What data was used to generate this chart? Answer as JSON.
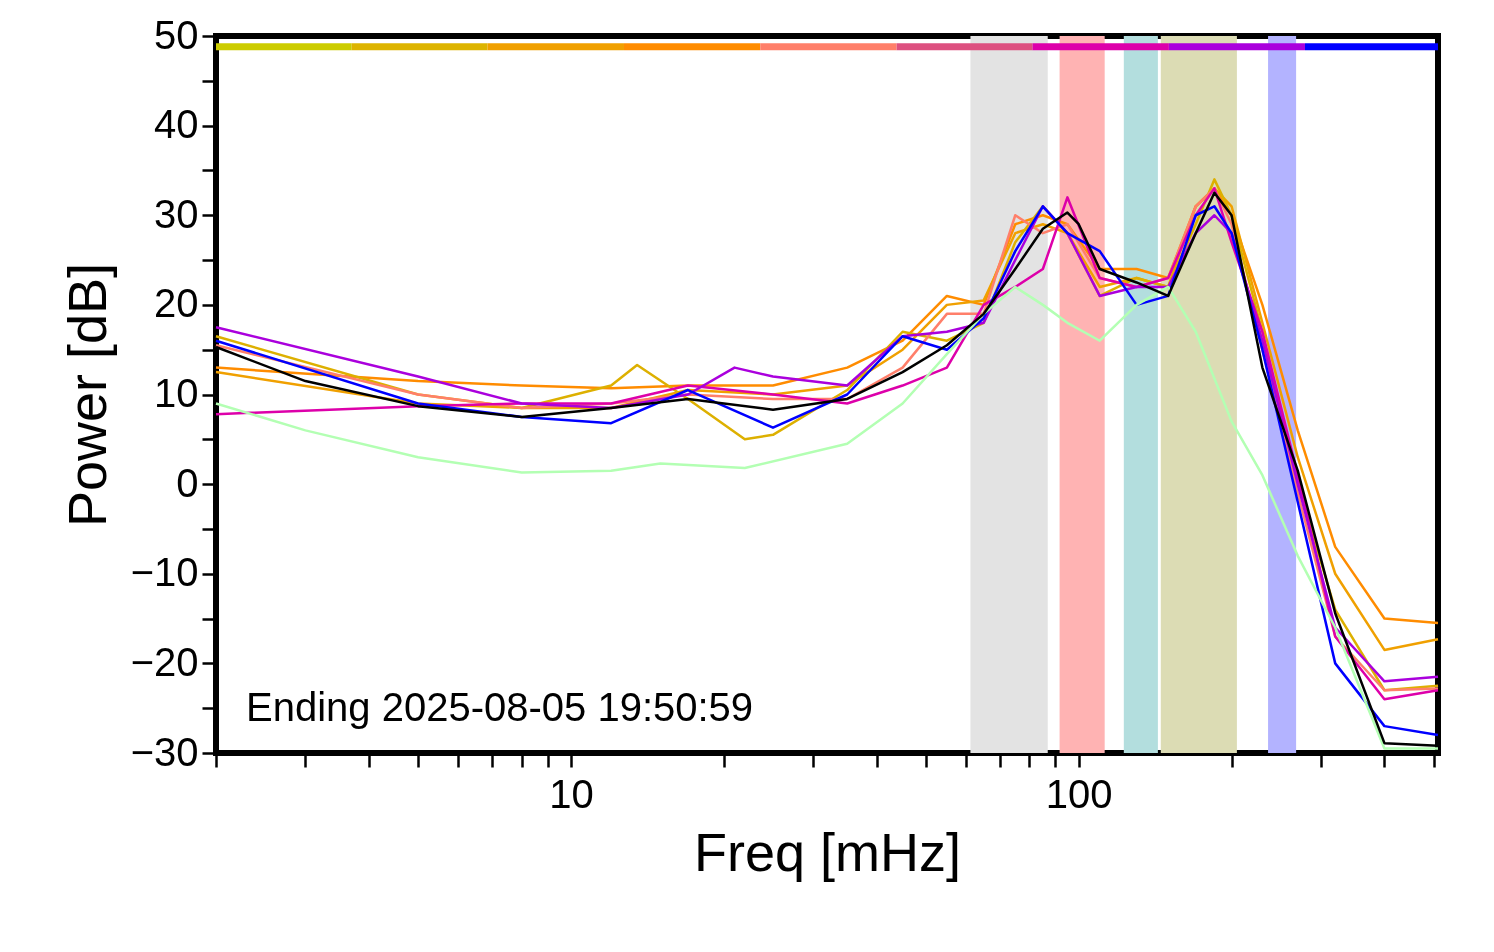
{
  "chart_data": {
    "type": "line",
    "xlabel": "Freq [mHz]",
    "ylabel": "Power [dB]",
    "log": "x",
    "xlim": [
      2,
      510
    ],
    "ylim": [
      -30,
      50
    ],
    "xticks": [
      {
        "value": 2,
        "label": null
      },
      {
        "value": 3,
        "label": null
      },
      {
        "value": 4,
        "label": null
      },
      {
        "value": 5,
        "label": null
      },
      {
        "value": 6,
        "label": null
      },
      {
        "value": 7,
        "label": null
      },
      {
        "value": 8,
        "label": null
      },
      {
        "value": 9,
        "label": null
      },
      10,
      {
        "value": 20,
        "label": null
      },
      {
        "value": 30,
        "label": null
      },
      {
        "value": 40,
        "label": null
      },
      {
        "value": 50,
        "label": null
      },
      {
        "value": 60,
        "label": null
      },
      {
        "value": 70,
        "label": null
      },
      {
        "value": 80,
        "label": null
      },
      {
        "value": 90,
        "label": null
      },
      100,
      {
        "value": 200,
        "label": null
      },
      {
        "value": 300,
        "label": null
      },
      {
        "value": 400,
        "label": null
      },
      {
        "value": 500,
        "label": null
      }
    ],
    "yticks": [
      -30,
      {
        "value": -25,
        "label": null
      },
      -20,
      {
        "value": -15,
        "label": null
      },
      -10,
      {
        "value": -5,
        "label": null
      },
      0,
      {
        "value": 5,
        "label": null
      },
      10,
      {
        "value": 15,
        "label": null
      },
      20,
      {
        "value": 25,
        "label": null
      },
      30,
      {
        "value": 35,
        "label": null
      },
      40,
      {
        "value": 45,
        "label": null
      },
      50
    ],
    "grid": false,
    "marker": "none",
    "line_style": "solid",
    "bands": [
      {
        "axis": "x",
        "from": 61.2,
        "to": 86.9,
        "color": "#e3e3e3"
      },
      {
        "axis": "x",
        "from": 91.7,
        "to": 112.5,
        "color": "#ffb3b3"
      },
      {
        "axis": "x",
        "from": 122.7,
        "to": 143.2,
        "color": "#b3dede"
      },
      {
        "axis": "x",
        "from": 145.1,
        "to": 204.9,
        "color": "#dcdcb4"
      },
      {
        "axis": "x",
        "from": 236,
        "to": 268,
        "color": "#b3b3ff"
      }
    ],
    "annotations": [
      "Ending 2025-08-05 19:50:59"
    ],
    "series": [
      {
        "color": "#ff8c00",
        "x": [
          2,
          5,
          8,
          12,
          17,
          25,
          35,
          45,
          55,
          65,
          75,
          85,
          95,
          110,
          130,
          150,
          170,
          185,
          200,
          230,
          270,
          320,
          400,
          510
        ],
        "values": [
          13,
          11.5,
          11,
          10.7,
          11,
          11,
          13,
          16,
          21,
          20,
          29,
          30,
          29,
          24,
          24,
          23,
          31,
          33,
          30,
          20,
          6,
          -7,
          -15,
          -15.5
        ]
      },
      {
        "color": "#f0a000",
        "x": [
          2,
          5,
          8,
          12,
          17,
          25,
          35,
          45,
          55,
          65,
          75,
          85,
          95,
          110,
          130,
          150,
          170,
          185,
          200,
          230,
          270,
          320,
          400,
          510
        ],
        "values": [
          12.5,
          9,
          8.5,
          8.5,
          10.5,
          10,
          11,
          15,
          20,
          20.5,
          28,
          29,
          28,
          22,
          23,
          22,
          31,
          33,
          31,
          18,
          3,
          -10,
          -18.5,
          -17.3
        ]
      },
      {
        "color": "#ddb000",
        "x": [
          2,
          5,
          8,
          12,
          13.5,
          17,
          22,
          25,
          35,
          45,
          55,
          65,
          75,
          85,
          95,
          110,
          130,
          150,
          170,
          185,
          200,
          230,
          270,
          320,
          400,
          510
        ],
        "values": [
          16.5,
          10,
          8.5,
          11,
          13.3,
          9.5,
          5,
          5.5,
          10.5,
          17,
          16,
          18,
          27,
          31,
          28,
          21,
          23,
          22,
          29,
          34,
          30,
          17,
          0,
          -14,
          -23,
          -22.5
        ]
      },
      {
        "color": "#ff7f6a",
        "x": [
          2,
          5,
          8,
          12,
          17,
          25,
          35,
          45,
          55,
          65,
          75,
          85,
          95,
          110,
          130,
          150,
          170,
          185,
          200,
          230,
          270,
          320,
          400,
          510
        ],
        "values": [
          15.5,
          10,
          8.5,
          9,
          10,
          9.5,
          9.5,
          13,
          19,
          19,
          30,
          28,
          29,
          23,
          22,
          23,
          31,
          33,
          29,
          15,
          -1,
          -17,
          -23,
          -22.8
        ]
      },
      {
        "color": "#dd00aa",
        "x": [
          2,
          5,
          8,
          12,
          17,
          25,
          35,
          45,
          55,
          65,
          75,
          85,
          95,
          110,
          130,
          150,
          170,
          185,
          200,
          230,
          270,
          320,
          400,
          510
        ],
        "values": [
          7.8,
          8.7,
          9,
          9,
          11,
          10,
          9,
          11,
          13,
          20,
          22,
          24,
          32,
          23,
          22,
          23,
          30,
          33,
          27,
          17,
          1,
          -17,
          -24,
          -23
        ]
      },
      {
        "color": "#aa00dd",
        "x": [
          2,
          5,
          8,
          12,
          17,
          21,
          25,
          35,
          45,
          55,
          65,
          75,
          85,
          95,
          110,
          130,
          150,
          170,
          185,
          200,
          230,
          270,
          320,
          400,
          510
        ],
        "values": [
          17.5,
          12,
          9,
          8.5,
          10,
          13,
          12,
          11,
          16.5,
          17,
          18,
          25,
          31,
          28,
          21,
          22,
          22,
          28,
          30,
          28,
          16,
          0,
          -16,
          -22,
          -21.5
        ]
      },
      {
        "color": "#0000ff",
        "x": [
          2,
          5,
          8,
          12,
          17,
          25,
          35,
          45,
          55,
          65,
          75,
          85,
          95,
          110,
          130,
          150,
          170,
          185,
          200,
          230,
          270,
          320,
          400,
          510
        ],
        "values": [
          16,
          9,
          7.5,
          6.8,
          10.5,
          6.3,
          10,
          16.5,
          15,
          18.5,
          26,
          31,
          28,
          26,
          20,
          21,
          30,
          31,
          28,
          15,
          -2,
          -20,
          -27,
          -28
        ]
      },
      {
        "color": "#b3ffb3",
        "x": [
          2,
          3,
          5,
          8,
          12,
          15,
          22,
          35,
          45,
          55,
          65,
          75,
          85,
          95,
          110,
          130,
          150,
          170,
          200,
          230,
          270,
          320,
          400,
          510
        ],
        "values": [
          9,
          6,
          3,
          1.3,
          1.5,
          2.3,
          1.8,
          4.5,
          9,
          14.5,
          19,
          22,
          20,
          18,
          16,
          20,
          22,
          17,
          7,
          1,
          -8,
          -16,
          -29.5,
          -29.5
        ]
      },
      {
        "color": "#000000",
        "x": [
          2,
          3,
          5,
          8,
          12,
          17,
          25,
          35,
          45,
          55,
          65,
          75,
          85,
          95,
          100,
          110,
          130,
          150,
          170,
          185,
          200,
          230,
          270,
          320,
          400,
          510
        ],
        "values": [
          15.3,
          11.5,
          8.7,
          7.5,
          8.5,
          9.5,
          8.3,
          9.5,
          12.5,
          15.5,
          19,
          24,
          28.5,
          30.3,
          29,
          24,
          22.5,
          21,
          28,
          32.5,
          30,
          13,
          1.5,
          -14.4,
          -28.9,
          -29.2
        ]
      },
      {
        "color": "#cccc00",
        "x": [
          2,
          3.7
        ],
        "values": [
          48.8,
          48.8
        ]
      },
      {
        "color": "#ddb400",
        "x": [
          3.7,
          6.85
        ],
        "values": [
          48.8,
          48.8
        ]
      },
      {
        "color": "#f0a000",
        "x": [
          6.85,
          12.72
        ],
        "values": [
          48.8,
          48.8
        ]
      },
      {
        "color": "#ff8c00",
        "x": [
          12.72,
          23.6
        ],
        "values": [
          48.8,
          48.8
        ]
      },
      {
        "color": "#ff7f6a",
        "x": [
          23.6,
          43.8
        ],
        "values": [
          48.8,
          48.8
        ]
      },
      {
        "color": "#dd5080",
        "x": [
          43.8,
          81.1
        ],
        "values": [
          48.8,
          48.8
        ]
      },
      {
        "color": "#dd00aa",
        "x": [
          81.1,
          150.5
        ],
        "values": [
          48.8,
          48.8
        ]
      },
      {
        "color": "#aa00dd",
        "x": [
          150.5,
          279
        ],
        "values": [
          48.8,
          48.8
        ]
      },
      {
        "color": "#0000ff",
        "x": [
          279,
          510
        ],
        "values": [
          48.8,
          48.8
        ]
      }
    ]
  }
}
